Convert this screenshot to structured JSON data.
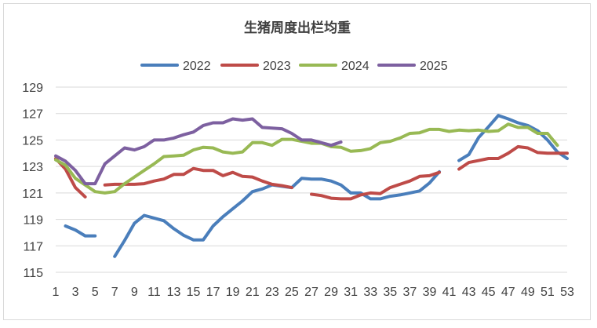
{
  "chart_data": {
    "type": "line",
    "title": "生猪周度出栏均重",
    "xlabel": "",
    "ylabel": "",
    "x_ticks": [
      1,
      3,
      5,
      7,
      9,
      11,
      13,
      15,
      17,
      19,
      21,
      23,
      25,
      27,
      29,
      31,
      33,
      35,
      37,
      39,
      41,
      43,
      45,
      47,
      49,
      51,
      53
    ],
    "y_ticks": [
      115,
      117,
      119,
      121,
      123,
      125,
      127,
      129
    ],
    "xlim": [
      1,
      53
    ],
    "ylim": [
      115,
      129
    ],
    "grid": "horizontal",
    "legend_position": "top",
    "series": [
      {
        "name": "2022",
        "color": "#4a7ebb",
        "points": [
          [
            2,
            118.5
          ],
          [
            3,
            118.2
          ],
          [
            4,
            117.75
          ],
          [
            5,
            117.75
          ],
          [
            null,
            null
          ],
          [
            7,
            116.2
          ],
          [
            8,
            117.4
          ],
          [
            9,
            118.7
          ],
          [
            10,
            119.3
          ],
          [
            11,
            119.1
          ],
          [
            12,
            118.9
          ],
          [
            13,
            118.3
          ],
          [
            14,
            117.8
          ],
          [
            15,
            117.45
          ],
          [
            16,
            117.45
          ],
          [
            17,
            118.5
          ],
          [
            18,
            119.2
          ],
          [
            19,
            119.8
          ],
          [
            20,
            120.4
          ],
          [
            21,
            121.1
          ],
          [
            22,
            121.3
          ],
          [
            23,
            121.6
          ],
          [
            24,
            121.5
          ],
          [
            25,
            121.4
          ],
          [
            26,
            122.1
          ],
          [
            27,
            122.05
          ],
          [
            28,
            122.05
          ],
          [
            29,
            121.9
          ],
          [
            30,
            121.6
          ],
          [
            31,
            121.0
          ],
          [
            32,
            121.0
          ],
          [
            33,
            120.55
          ],
          [
            34,
            120.55
          ],
          [
            35,
            120.75
          ],
          [
            36,
            120.85
          ],
          [
            37,
            121.0
          ],
          [
            38,
            121.15
          ],
          [
            39,
            121.75
          ],
          [
            40,
            122.6
          ],
          [
            null,
            null
          ],
          [
            42,
            123.45
          ],
          [
            43,
            123.9
          ],
          [
            44,
            125.2
          ],
          [
            45,
            126.0
          ],
          [
            46,
            126.85
          ],
          [
            47,
            126.6
          ],
          [
            48,
            126.3
          ],
          [
            49,
            126.1
          ],
          [
            50,
            125.7
          ],
          [
            51,
            125.0
          ],
          [
            52,
            124.1
          ],
          [
            53,
            123.6
          ]
        ]
      },
      {
        "name": "2023",
        "color": "#be4b48",
        "points": [
          [
            1,
            123.6
          ],
          [
            2,
            122.8
          ],
          [
            3,
            121.4
          ],
          [
            4,
            120.7
          ],
          [
            null,
            null
          ],
          [
            6,
            121.6
          ],
          [
            7,
            121.65
          ],
          [
            8,
            121.65
          ],
          [
            9,
            121.65
          ],
          [
            10,
            121.7
          ],
          [
            11,
            121.9
          ],
          [
            12,
            122.05
          ],
          [
            13,
            122.4
          ],
          [
            14,
            122.4
          ],
          [
            15,
            122.85
          ],
          [
            16,
            122.7
          ],
          [
            17,
            122.7
          ],
          [
            18,
            122.3
          ],
          [
            19,
            122.55
          ],
          [
            20,
            122.25
          ],
          [
            21,
            122.2
          ],
          [
            22,
            121.9
          ],
          [
            23,
            121.65
          ],
          [
            24,
            121.55
          ],
          [
            25,
            121.4
          ],
          [
            null,
            null
          ],
          [
            27,
            120.9
          ],
          [
            28,
            120.8
          ],
          [
            29,
            120.6
          ],
          [
            30,
            120.55
          ],
          [
            31,
            120.55
          ],
          [
            32,
            120.85
          ],
          [
            33,
            121.0
          ],
          [
            34,
            120.95
          ],
          [
            35,
            121.4
          ],
          [
            36,
            121.65
          ],
          [
            37,
            121.9
          ],
          [
            38,
            122.25
          ],
          [
            39,
            122.3
          ],
          [
            40,
            122.55
          ],
          [
            null,
            null
          ],
          [
            42,
            122.8
          ],
          [
            43,
            123.3
          ],
          [
            44,
            123.45
          ],
          [
            45,
            123.6
          ],
          [
            46,
            123.6
          ],
          [
            47,
            124.0
          ],
          [
            48,
            124.5
          ],
          [
            49,
            124.4
          ],
          [
            50,
            124.05
          ],
          [
            51,
            124.0
          ],
          [
            52,
            124.0
          ],
          [
            53,
            124.0
          ]
        ]
      },
      {
        "name": "2024",
        "color": "#98b954",
        "points": [
          [
            1,
            123.5
          ],
          [
            2,
            123.1
          ],
          [
            3,
            122.1
          ],
          [
            4,
            121.6
          ],
          [
            5,
            121.1
          ],
          [
            6,
            121.0
          ],
          [
            7,
            121.1
          ],
          [
            8,
            121.7
          ],
          [
            9,
            122.2
          ],
          [
            10,
            122.7
          ],
          [
            11,
            123.2
          ],
          [
            12,
            123.75
          ],
          [
            13,
            123.8
          ],
          [
            14,
            123.85
          ],
          [
            15,
            124.25
          ],
          [
            16,
            124.45
          ],
          [
            17,
            124.4
          ],
          [
            18,
            124.1
          ],
          [
            19,
            124.0
          ],
          [
            20,
            124.1
          ],
          [
            21,
            124.8
          ],
          [
            22,
            124.8
          ],
          [
            23,
            124.6
          ],
          [
            24,
            125.05
          ],
          [
            25,
            125.05
          ],
          [
            26,
            124.9
          ],
          [
            27,
            124.75
          ],
          [
            28,
            124.75
          ],
          [
            29,
            124.5
          ],
          [
            30,
            124.45
          ],
          [
            31,
            124.15
          ],
          [
            32,
            124.2
          ],
          [
            33,
            124.35
          ],
          [
            34,
            124.8
          ],
          [
            35,
            124.9
          ],
          [
            36,
            125.15
          ],
          [
            37,
            125.5
          ],
          [
            38,
            125.55
          ],
          [
            39,
            125.8
          ],
          [
            40,
            125.8
          ],
          [
            41,
            125.65
          ],
          [
            42,
            125.75
          ],
          [
            43,
            125.7
          ],
          [
            44,
            125.75
          ],
          [
            45,
            125.65
          ],
          [
            46,
            125.7
          ],
          [
            47,
            126.2
          ],
          [
            48,
            125.95
          ],
          [
            49,
            125.95
          ],
          [
            50,
            125.5
          ],
          [
            51,
            125.5
          ],
          [
            52,
            124.6
          ]
        ]
      },
      {
        "name": "2025",
        "color": "#7d60a0",
        "points": [
          [
            1,
            123.8
          ],
          [
            2,
            123.4
          ],
          [
            3,
            122.7
          ],
          [
            4,
            121.7
          ],
          [
            5,
            121.7
          ],
          [
            6,
            123.2
          ],
          [
            7,
            123.8
          ],
          [
            8,
            124.4
          ],
          [
            9,
            124.25
          ],
          [
            10,
            124.5
          ],
          [
            11,
            125.0
          ],
          [
            12,
            125.0
          ],
          [
            13,
            125.15
          ],
          [
            14,
            125.4
          ],
          [
            15,
            125.6
          ],
          [
            16,
            126.1
          ],
          [
            17,
            126.3
          ],
          [
            18,
            126.3
          ],
          [
            19,
            126.6
          ],
          [
            20,
            126.5
          ],
          [
            21,
            126.6
          ],
          [
            22,
            125.95
          ],
          [
            23,
            125.9
          ],
          [
            24,
            125.85
          ],
          [
            25,
            125.5
          ],
          [
            26,
            125.0
          ],
          [
            27,
            125.0
          ],
          [
            28,
            124.8
          ],
          [
            29,
            124.6
          ],
          [
            30,
            124.85
          ]
        ]
      }
    ]
  }
}
